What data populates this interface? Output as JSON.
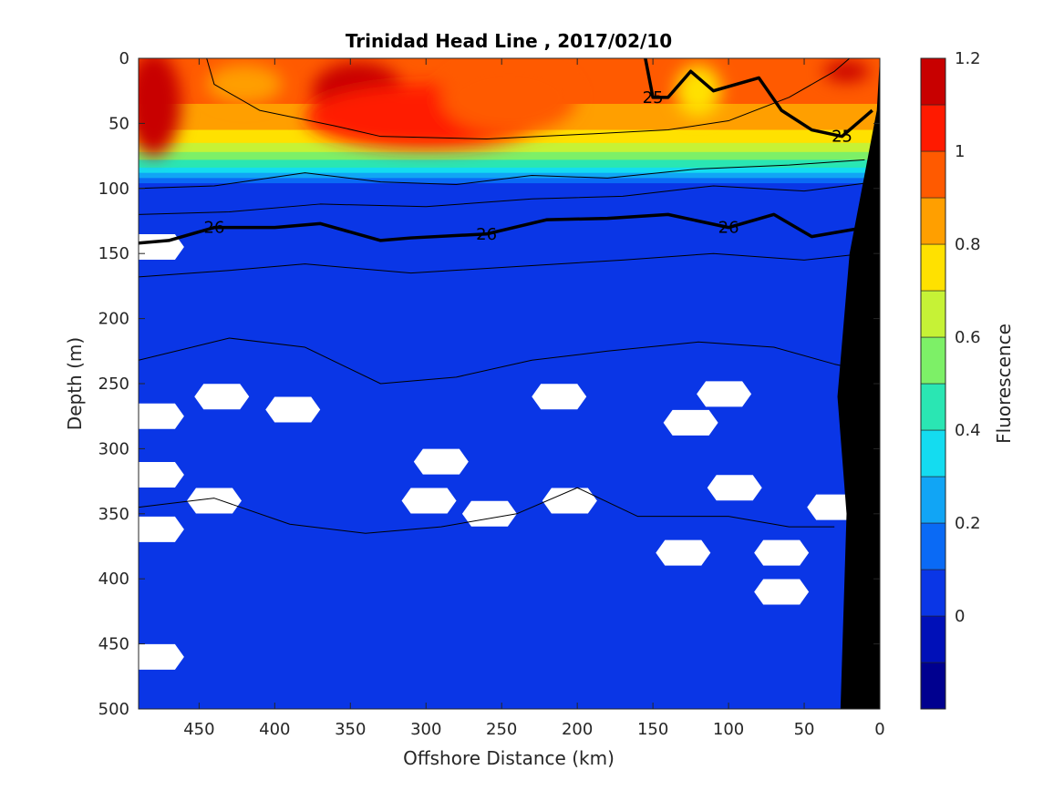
{
  "chart_data": {
    "type": "heatmap",
    "title": "Trinidad Head Line , 2017/02/10",
    "xlabel": "Offshore Distance (km)",
    "ylabel": "Depth (m)",
    "xlim": [
      490,
      0
    ],
    "ylim": [
      500,
      0
    ],
    "x_reversed": true,
    "y_reversed": true,
    "xticks": [
      450,
      400,
      350,
      300,
      250,
      200,
      150,
      100,
      50,
      0
    ],
    "yticks": [
      0,
      50,
      100,
      150,
      200,
      250,
      300,
      350,
      400,
      450,
      500
    ],
    "colorbar": {
      "label": "Fluorescence",
      "range": [
        -0.2,
        1.2
      ],
      "ticks": [
        1.2,
        1,
        0.8,
        0.6,
        0.4,
        0.2,
        0
      ],
      "levels": [
        {
          "from": -0.2,
          "to": -0.1,
          "color": "#00008f"
        },
        {
          "from": -0.1,
          "to": 0.0,
          "color": "#0010b8"
        },
        {
          "from": 0.0,
          "to": 0.1,
          "color": "#0a36e6"
        },
        {
          "from": 0.1,
          "to": 0.2,
          "color": "#0a6af5"
        },
        {
          "from": 0.2,
          "to": 0.3,
          "color": "#11a5f5"
        },
        {
          "from": 0.3,
          "to": 0.4,
          "color": "#14dcf0"
        },
        {
          "from": 0.4,
          "to": 0.5,
          "color": "#2ae6b3"
        },
        {
          "from": 0.5,
          "to": 0.6,
          "color": "#7df067"
        },
        {
          "from": 0.6,
          "to": 0.7,
          "color": "#c6f236"
        },
        {
          "from": 0.7,
          "to": 0.8,
          "color": "#ffe100"
        },
        {
          "from": 0.8,
          "to": 0.9,
          "color": "#ff9f00"
        },
        {
          "from": 0.9,
          "to": 1.0,
          "color": "#ff5a00"
        },
        {
          "from": 1.0,
          "to": 1.1,
          "color": "#ff1a00"
        },
        {
          "from": 1.1,
          "to": 1.2,
          "color": "#c80000"
        }
      ]
    },
    "field_blobs": [
      {
        "x": 480,
        "depth": 35,
        "rx": 18,
        "ry": 40,
        "value": 1.15
      },
      {
        "x": 345,
        "depth": 25,
        "rx": 30,
        "ry": 22,
        "value": 1.15
      },
      {
        "x": 300,
        "depth": 45,
        "rx": 80,
        "ry": 25,
        "value": 1.05
      },
      {
        "x": 245,
        "depth": 30,
        "rx": 45,
        "ry": 28,
        "value": 0.95
      },
      {
        "x": 420,
        "depth": 20,
        "rx": 25,
        "ry": 15,
        "value": 0.85
      },
      {
        "x": 120,
        "depth": 25,
        "rx": 15,
        "ry": 20,
        "value": 0.75
      },
      {
        "x": 22,
        "depth": 10,
        "rx": 15,
        "ry": 8,
        "value": 1.15
      }
    ],
    "missing_data": [
      {
        "x": 478,
        "depth": 145
      },
      {
        "x": 478,
        "depth": 275
      },
      {
        "x": 478,
        "depth": 320
      },
      {
        "x": 478,
        "depth": 362
      },
      {
        "x": 478,
        "depth": 460
      },
      {
        "x": 435,
        "depth": 260
      },
      {
        "x": 388,
        "depth": 270
      },
      {
        "x": 440,
        "depth": 340
      },
      {
        "x": 290,
        "depth": 310
      },
      {
        "x": 298,
        "depth": 340
      },
      {
        "x": 258,
        "depth": 350
      },
      {
        "x": 212,
        "depth": 260
      },
      {
        "x": 205,
        "depth": 340
      },
      {
        "x": 130,
        "depth": 380
      },
      {
        "x": 103,
        "depth": 258
      },
      {
        "x": 125,
        "depth": 280
      },
      {
        "x": 96,
        "depth": 330
      },
      {
        "x": 65,
        "depth": 380
      },
      {
        "x": 65,
        "depth": 410
      },
      {
        "x": 30,
        "depth": 345
      }
    ],
    "contours": [
      {
        "label": "25",
        "bold": true,
        "points": [
          [
            155,
            0
          ],
          [
            150,
            30
          ],
          [
            140,
            30
          ],
          [
            125,
            10
          ],
          [
            110,
            25
          ],
          [
            95,
            20
          ],
          [
            80,
            15
          ],
          [
            65,
            40
          ],
          [
            45,
            55
          ],
          [
            25,
            60
          ],
          [
            5,
            40
          ]
        ]
      },
      {
        "label": "26",
        "bold": true,
        "points": [
          [
            490,
            142
          ],
          [
            470,
            140
          ],
          [
            440,
            130
          ],
          [
            400,
            130
          ],
          [
            370,
            127
          ],
          [
            330,
            140
          ],
          [
            310,
            138
          ],
          [
            260,
            135
          ],
          [
            220,
            124
          ],
          [
            180,
            123
          ],
          [
            140,
            120
          ],
          [
            100,
            130
          ],
          [
            70,
            120
          ],
          [
            45,
            137
          ],
          [
            10,
            130
          ]
        ]
      },
      {
        "label": "",
        "bold": false,
        "points": [
          [
            490,
            100
          ],
          [
            440,
            98
          ],
          [
            380,
            88
          ],
          [
            330,
            95
          ],
          [
            280,
            97
          ],
          [
            230,
            90
          ],
          [
            180,
            92
          ],
          [
            120,
            85
          ],
          [
            60,
            82
          ],
          [
            10,
            78
          ]
        ]
      },
      {
        "label": "",
        "bold": false,
        "points": [
          [
            490,
            120
          ],
          [
            430,
            118
          ],
          [
            370,
            112
          ],
          [
            300,
            114
          ],
          [
            230,
            108
          ],
          [
            170,
            106
          ],
          [
            110,
            98
          ],
          [
            50,
            102
          ],
          [
            10,
            96
          ]
        ]
      },
      {
        "label": "",
        "bold": false,
        "points": [
          [
            490,
            168
          ],
          [
            430,
            163
          ],
          [
            380,
            158
          ],
          [
            310,
            165
          ],
          [
            240,
            160
          ],
          [
            170,
            155
          ],
          [
            110,
            150
          ],
          [
            50,
            155
          ],
          [
            10,
            150
          ]
        ]
      },
      {
        "label": "",
        "bold": false,
        "points": [
          [
            490,
            232
          ],
          [
            430,
            215
          ],
          [
            380,
            222
          ],
          [
            330,
            250
          ],
          [
            280,
            245
          ],
          [
            230,
            232
          ],
          [
            180,
            225
          ],
          [
            120,
            218
          ],
          [
            70,
            222
          ],
          [
            30,
            235
          ],
          [
            10,
            240
          ]
        ]
      },
      {
        "label": "",
        "bold": false,
        "points": [
          [
            490,
            345
          ],
          [
            440,
            338
          ],
          [
            390,
            358
          ],
          [
            340,
            365
          ],
          [
            290,
            360
          ],
          [
            240,
            350
          ],
          [
            200,
            330
          ],
          [
            160,
            352
          ],
          [
            100,
            352
          ],
          [
            60,
            360
          ],
          [
            30,
            360
          ]
        ]
      },
      {
        "label": "",
        "bold": false,
        "points": [
          [
            445,
            0
          ],
          [
            440,
            20
          ],
          [
            410,
            40
          ],
          [
            360,
            52
          ],
          [
            330,
            60
          ],
          [
            260,
            62
          ],
          [
            190,
            58
          ],
          [
            140,
            55
          ],
          [
            100,
            48
          ],
          [
            60,
            30
          ],
          [
            30,
            10
          ],
          [
            20,
            0
          ]
        ]
      }
    ],
    "bathymetry": [
      [
        0,
        0
      ],
      [
        2,
        40
      ],
      [
        20,
        150
      ],
      [
        28,
        260
      ],
      [
        22,
        350
      ],
      [
        26,
        500
      ],
      [
        0,
        500
      ]
    ]
  }
}
